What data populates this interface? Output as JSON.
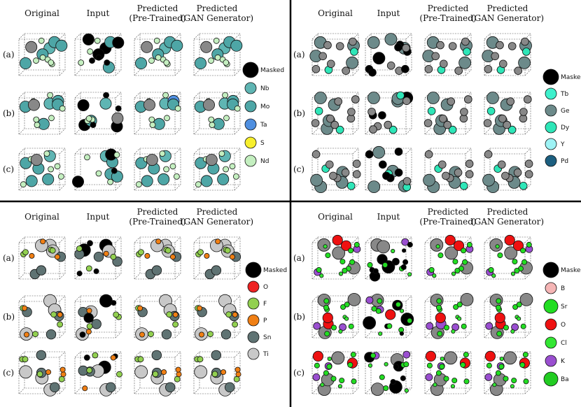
{
  "row_labels": [
    "(a)",
    "(b)",
    "(c)"
  ],
  "column_headers": [
    {
      "line1": "Original",
      "line2": ""
    },
    {
      "line1": "Input",
      "line2": ""
    },
    {
      "line1": "Predicted",
      "line2": "(Pre-Trained)"
    },
    {
      "line1": "Predicted",
      "line2": "(GAN Generator)"
    }
  ],
  "colors": {
    "divider": "#000000",
    "masked": "#000000"
  },
  "panels": [
    {
      "id": "top-left",
      "legend": [
        {
          "label": "Masked",
          "color": "#000000"
        },
        {
          "label": "Nb",
          "color": "#5fb5b3"
        },
        {
          "label": "Mo",
          "color": "#4ea6a6"
        },
        {
          "label": "Ta",
          "color": "#4f8fe0"
        },
        {
          "label": "S",
          "color": "#f7ef2d"
        },
        {
          "label": "Nd",
          "color": "#c4efc0"
        }
      ]
    },
    {
      "id": "top-right",
      "legend": [
        {
          "label": "Masked",
          "color": "#000000"
        },
        {
          "label": "Tb",
          "color": "#3ef0cc"
        },
        {
          "label": "Ge",
          "color": "#6c8a8a"
        },
        {
          "label": "Dy",
          "color": "#2ee6b8"
        },
        {
          "label": "Y",
          "color": "#9ef3f5"
        },
        {
          "label": "Pd",
          "color": "#1c5f80"
        }
      ]
    },
    {
      "id": "bottom-left",
      "legend": [
        {
          "label": "Masked",
          "color": "#000000"
        },
        {
          "label": "O",
          "color": "#ee2222"
        },
        {
          "label": "F",
          "color": "#92d050"
        },
        {
          "label": "P",
          "color": "#f07f14"
        },
        {
          "label": "Sn",
          "color": "#5f7373"
        },
        {
          "label": "Ti",
          "color": "#c8c8c8"
        }
      ]
    },
    {
      "id": "bottom-right",
      "legend": [
        {
          "label": "Masked",
          "color": "#000000"
        },
        {
          "label": "B",
          "color": "#f5b5b5"
        },
        {
          "label": "Sr",
          "color": "#22dd22"
        },
        {
          "label": "O",
          "color": "#ee1111"
        },
        {
          "label": "Cl",
          "color": "#33e633"
        },
        {
          "label": "K",
          "color": "#9a4fd0"
        },
        {
          "label": "Ba",
          "color": "#22cc22"
        }
      ]
    }
  ]
}
